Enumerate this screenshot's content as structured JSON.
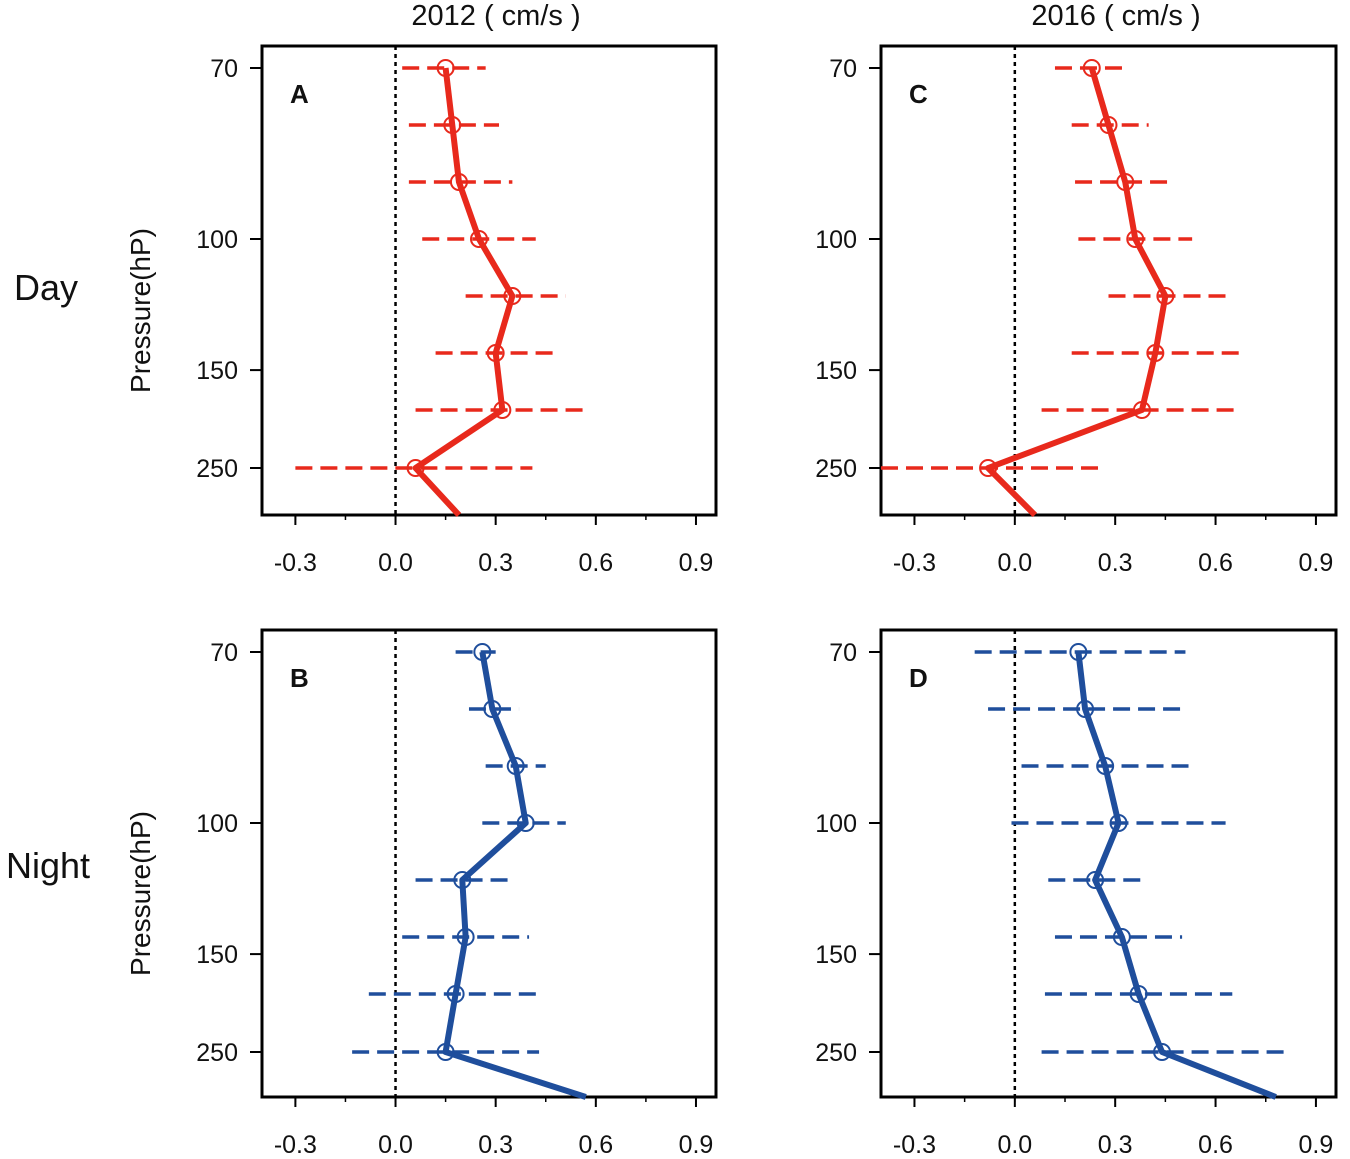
{
  "column_titles": [
    "2012 ( cm/s )",
    "2016 ( cm/s )"
  ],
  "row_titles": [
    "Day",
    "Night"
  ],
  "chart_data": [
    {
      "type": "line",
      "panel": "A",
      "row": "Day",
      "year": "2012",
      "ylabel": "Pressure(hP)",
      "xlabel": "",
      "x_ticks": [
        "-0.3",
        "0.0",
        "0.3",
        "0.6",
        "0.9"
      ],
      "y_ticks": [
        "70",
        "100",
        "150",
        "250"
      ],
      "xlim": [
        -0.4,
        0.96
      ],
      "color": "#e8291c",
      "series": [
        {
          "name": "mean",
          "levels": [
            1,
            2,
            3,
            4,
            5,
            6,
            7,
            8
          ],
          "values": [
            0.15,
            0.17,
            0.19,
            0.25,
            0.35,
            0.3,
            0.32,
            0.06
          ]
        },
        {
          "name": "lower",
          "values": [
            0.02,
            0.04,
            0.04,
            0.08,
            0.21,
            0.12,
            0.06,
            -0.3
          ]
        },
        {
          "name": "upper",
          "values": [
            0.27,
            0.31,
            0.35,
            0.42,
            0.51,
            0.49,
            0.57,
            0.41
          ]
        }
      ],
      "tail_value": 0.19
    },
    {
      "type": "line",
      "panel": "C",
      "row": "Day",
      "year": "2016",
      "ylabel": "",
      "xlabel": "",
      "x_ticks": [
        "-0.3",
        "0.0",
        "0.3",
        "0.6",
        "0.9"
      ],
      "y_ticks": [
        "70",
        "100",
        "150",
        "250"
      ],
      "xlim": [
        -0.4,
        0.96
      ],
      "color": "#e8291c",
      "series": [
        {
          "name": "mean",
          "levels": [
            1,
            2,
            3,
            4,
            5,
            6,
            7,
            8
          ],
          "values": [
            0.23,
            0.28,
            0.33,
            0.36,
            0.45,
            0.42,
            0.38,
            -0.08
          ]
        },
        {
          "name": "lower",
          "values": [
            0.12,
            0.17,
            0.18,
            0.19,
            0.28,
            0.17,
            0.08,
            -0.4
          ]
        },
        {
          "name": "upper",
          "values": [
            0.33,
            0.4,
            0.47,
            0.53,
            0.63,
            0.68,
            0.66,
            0.27
          ]
        }
      ],
      "tail_value": 0.06
    },
    {
      "type": "line",
      "panel": "B",
      "row": "Night",
      "year": "2012",
      "ylabel": "Pressure(hP)",
      "xlabel": "",
      "x_ticks": [
        "-0.3",
        "0.0",
        "0.3",
        "0.6",
        "0.9"
      ],
      "y_ticks": [
        "70",
        "100",
        "150",
        "250"
      ],
      "xlim": [
        -0.4,
        0.96
      ],
      "color": "#1f4e9c",
      "series": [
        {
          "name": "mean",
          "levels": [
            1,
            2,
            3,
            4,
            5,
            6,
            7,
            8
          ],
          "values": [
            0.26,
            0.29,
            0.36,
            0.39,
            0.2,
            0.21,
            0.18,
            0.15
          ]
        },
        {
          "name": "lower",
          "values": [
            0.18,
            0.22,
            0.27,
            0.26,
            0.06,
            0.02,
            -0.08,
            -0.13
          ]
        },
        {
          "name": "upper",
          "values": [
            0.3,
            0.37,
            0.45,
            0.51,
            0.34,
            0.4,
            0.43,
            0.43
          ]
        }
      ],
      "tail_value": 0.57
    },
    {
      "type": "line",
      "panel": "D",
      "row": "Night",
      "year": "2016",
      "ylabel": "",
      "xlabel": "",
      "x_ticks": [
        "-0.3",
        "0.0",
        "0.3",
        "0.6",
        "0.9"
      ],
      "y_ticks": [
        "70",
        "100",
        "150",
        "250"
      ],
      "xlim": [
        -0.4,
        0.96
      ],
      "color": "#1f4e9c",
      "series": [
        {
          "name": "mean",
          "levels": [
            1,
            2,
            3,
            4,
            5,
            6,
            7,
            8
          ],
          "values": [
            0.19,
            0.21,
            0.27,
            0.31,
            0.24,
            0.32,
            0.37,
            0.44
          ]
        },
        {
          "name": "lower",
          "values": [
            -0.12,
            -0.08,
            0.02,
            -0.01,
            0.1,
            0.12,
            0.09,
            0.08
          ]
        },
        {
          "name": "upper",
          "values": [
            0.51,
            0.5,
            0.54,
            0.63,
            0.39,
            0.5,
            0.65,
            0.82
          ]
        }
      ],
      "tail_value": 0.78
    }
  ]
}
